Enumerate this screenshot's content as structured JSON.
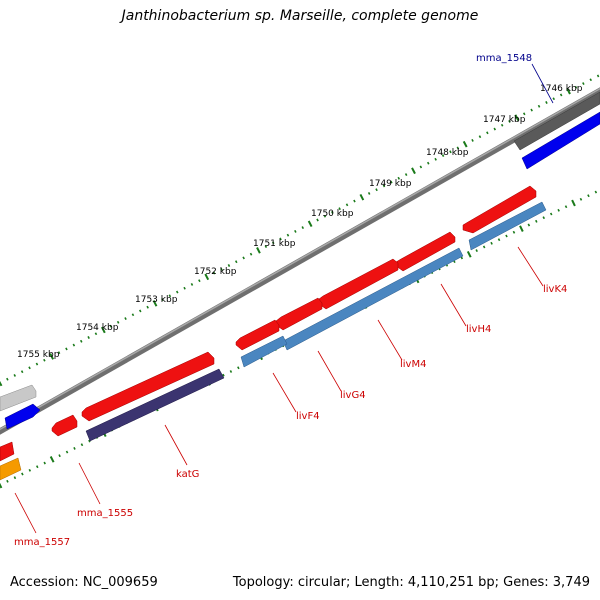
{
  "title": "Janthinobacterium sp. Marseille, complete genome",
  "footer": {
    "accession": "Accession: NC_009659",
    "summary": "Topology: circular; Length: 4,110,251 bp; Genes: 3,749"
  },
  "colors": {
    "backbone": "#7a7a7a",
    "tick": "#1a7a1a",
    "forward_gene": "#ee1111",
    "reverse_gene": "#4a86c0",
    "kat_gene": "#3b3470",
    "dark_gene": "#555555",
    "blue_gene": "#0000ee",
    "grey_gene": "#c8c8c8",
    "orange_gene": "#f59a00",
    "label_red": "#cc0000",
    "label_blue": "#00008b",
    "label_black": "#000000"
  },
  "scale": {
    "unit": "kbp",
    "labels": [
      "1746 kbp",
      "1747 kbp",
      "1748 kbp",
      "1749 kbp",
      "1750 kbp",
      "1751 kbp",
      "1752 kbp",
      "1753 kbp",
      "1754 kbp",
      "1755 kbp"
    ]
  },
  "gene_labels": [
    {
      "name": "mma_1548",
      "color": "label_blue"
    },
    {
      "name": "livK4",
      "color": "label_red"
    },
    {
      "name": "livH4",
      "color": "label_red"
    },
    {
      "name": "livM4",
      "color": "label_red"
    },
    {
      "name": "livG4",
      "color": "label_red"
    },
    {
      "name": "livF4",
      "color": "label_red"
    },
    {
      "name": "katG",
      "color": "label_red"
    },
    {
      "name": "mma_1555",
      "color": "label_red"
    },
    {
      "name": "mma_1557",
      "color": "label_red"
    }
  ]
}
